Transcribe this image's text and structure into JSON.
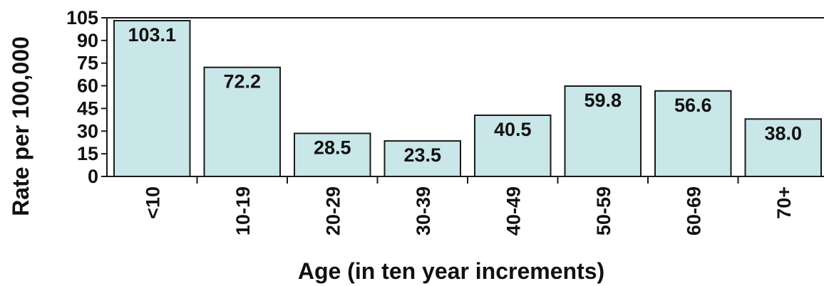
{
  "chart_data": {
    "type": "bar",
    "categories": [
      "<10",
      "10-19",
      "20-29",
      "30-39",
      "40-49",
      "50-59",
      "60-69",
      "70+"
    ],
    "values": [
      103.1,
      72.2,
      28.5,
      23.5,
      40.5,
      59.8,
      56.6,
      38.0
    ],
    "data_labels": [
      "103.1",
      "72.2",
      "28.5",
      "23.5",
      "40.5",
      "59.8",
      "56.6",
      "38.0"
    ],
    "y_ticks": [
      0,
      15,
      30,
      45,
      60,
      75,
      90,
      105
    ],
    "xlabel": "Age (in ten year increments)",
    "ylabel": "Rate per 100,000",
    "ylim": [
      0,
      105
    ],
    "grid": false,
    "legend": "none",
    "colors": {
      "bar_fill": "#c9e6e8",
      "bar_stroke": "#1a1a1a",
      "text": "#111111"
    }
  }
}
